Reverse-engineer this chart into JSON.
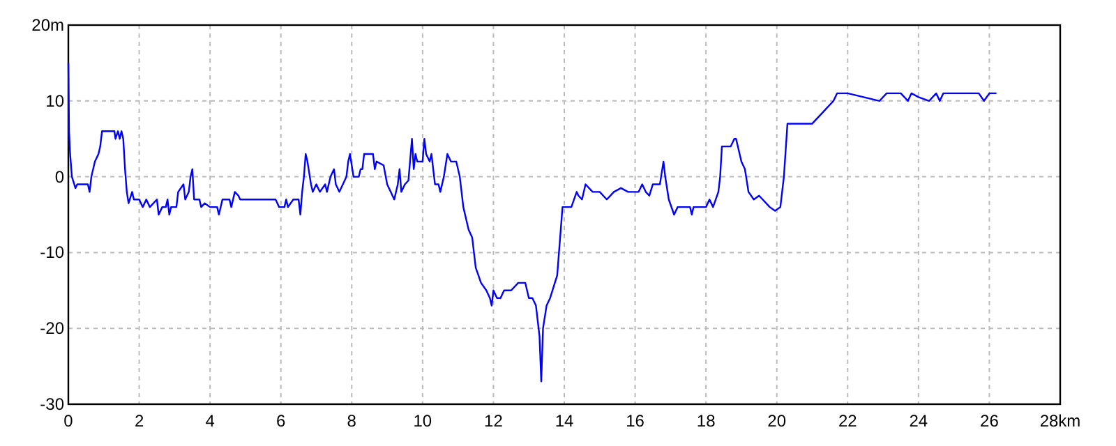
{
  "chart_data": {
    "type": "line",
    "xlim": [
      0,
      28
    ],
    "ylim": [
      -30,
      20
    ],
    "xticks": [
      0,
      2,
      4,
      6,
      8,
      10,
      12,
      14,
      16,
      18,
      20,
      22,
      24,
      26,
      {
        "value": 28,
        "label": "28km"
      }
    ],
    "yticks": [
      -30,
      -20,
      -10,
      0,
      10,
      {
        "value": 20,
        "label": "20m"
      }
    ],
    "grid": true,
    "line_style": "solid",
    "marker": "none",
    "series": [
      {
        "color": "#0000ff",
        "x": [
          0,
          0.02,
          0.05,
          0.1,
          0.2,
          0.25,
          0.4,
          0.55,
          0.6,
          0.65,
          0.75,
          0.85,
          0.9,
          0.95,
          1.3,
          1.33,
          1.4,
          1.45,
          1.5,
          1.55,
          1.6,
          1.65,
          1.7,
          1.8,
          1.85,
          2.0,
          2.1,
          2.2,
          2.3,
          2.5,
          2.55,
          2.65,
          2.75,
          2.8,
          2.85,
          2.9,
          3.05,
          3.1,
          3.25,
          3.3,
          3.4,
          3.45,
          3.5,
          3.55,
          3.7,
          3.75,
          3.85,
          4.0,
          4.2,
          4.25,
          4.35,
          4.55,
          4.6,
          4.7,
          4.8,
          4.85,
          5.0,
          5.85,
          5.95,
          6.1,
          6.15,
          6.2,
          6.35,
          6.5,
          6.55,
          6.6,
          6.65,
          6.7,
          6.75,
          6.85,
          6.9,
          7.0,
          7.1,
          7.25,
          7.3,
          7.4,
          7.5,
          7.55,
          7.65,
          7.75,
          7.85,
          7.9,
          7.95,
          8.05,
          8.2,
          8.25,
          8.3,
          8.35,
          8.6,
          8.65,
          8.7,
          8.9,
          9.0,
          9.1,
          9.2,
          9.3,
          9.35,
          9.4,
          9.5,
          9.6,
          9.7,
          9.75,
          9.8,
          9.85,
          10.0,
          10.05,
          10.1,
          10.2,
          10.25,
          10.3,
          10.35,
          10.45,
          10.5,
          10.6,
          10.7,
          10.8,
          10.95,
          11.05,
          11.15,
          11.3,
          11.4,
          11.5,
          11.65,
          11.8,
          11.9,
          11.95,
          12.0,
          12.1,
          12.2,
          12.3,
          12.5,
          12.7,
          12.9,
          13.0,
          13.1,
          13.2,
          13.3,
          13.35,
          13.4,
          13.5,
          13.6,
          13.8,
          13.85,
          13.95,
          14.2,
          14.35,
          14.4,
          14.5,
          14.6,
          14.8,
          15.0,
          15.2,
          15.4,
          15.6,
          15.8,
          16.1,
          16.2,
          16.3,
          16.4,
          16.5,
          16.7,
          16.8,
          16.85,
          16.95,
          17.1,
          17.2,
          17.3,
          17.55,
          17.6,
          17.65,
          18.0,
          18.1,
          18.2,
          18.35,
          18.4,
          18.45,
          18.7,
          18.8,
          18.85,
          19.0,
          19.1,
          19.2,
          19.35,
          19.5,
          19.6,
          19.8,
          19.95,
          20.1,
          20.2,
          20.3,
          20.5,
          21.0,
          21.3,
          21.6,
          21.7,
          22.0,
          22.9,
          23.1,
          23.5,
          23.7,
          23.8,
          24.0,
          24.3,
          24.5,
          24.6,
          24.7,
          25.7,
          25.85,
          26.0,
          26.2
        ],
        "values": [
          15,
          6,
          3,
          0,
          -1.5,
          -1,
          -1,
          -1,
          -2,
          0,
          2,
          3,
          4,
          6,
          6,
          5,
          6,
          5,
          6,
          5,
          1,
          -2,
          -3.5,
          -2,
          -3,
          -3,
          -4,
          -3,
          -4,
          -3,
          -5,
          -4,
          -4,
          -3,
          -5,
          -4,
          -4,
          -2,
          -1,
          -3,
          -2,
          0,
          1,
          -3,
          -3,
          -4,
          -3.5,
          -4,
          -4,
          -5,
          -3,
          -3,
          -4,
          -2,
          -2.5,
          -3,
          -3,
          -3,
          -4,
          -4,
          -3,
          -4,
          -3,
          -3,
          -5,
          -2,
          0,
          3,
          2,
          -1,
          -2,
          -1,
          -2,
          -1,
          -2,
          0,
          1,
          -1,
          -2,
          -1,
          0,
          2,
          3,
          0,
          0,
          1,
          1,
          3,
          3,
          1,
          2,
          1.5,
          -1,
          -2,
          -3,
          -1,
          1,
          -2,
          -1,
          -0.5,
          5,
          1,
          3,
          2,
          2,
          5,
          3,
          2,
          3,
          1,
          -1,
          -1,
          -2,
          0,
          3,
          2,
          2,
          0,
          -4,
          -7,
          -8,
          -12,
          -14,
          -15,
          -16,
          -17,
          -15,
          -16,
          -16,
          -15,
          -15,
          -14,
          -14,
          -16,
          -16,
          -17,
          -21,
          -27,
          -20,
          -17,
          -16,
          -13,
          -10,
          -4,
          -4,
          -2,
          -2.5,
          -3,
          -1,
          -2,
          -2,
          -3,
          -2,
          -1.5,
          -2,
          -2,
          -1,
          -2,
          -2.5,
          -1,
          -1,
          2,
          0,
          -3,
          -5,
          -4,
          -4,
          -4,
          -5,
          -4,
          -4,
          -3,
          -4,
          -2,
          0,
          4,
          4,
          5,
          5,
          2,
          1,
          -2,
          -3,
          -2.5,
          -3,
          -4,
          -4.5,
          -4,
          0,
          7,
          7,
          7,
          8.5,
          10,
          11,
          11,
          10,
          11,
          11,
          10,
          11,
          10.5,
          10,
          11,
          10,
          11,
          11,
          10,
          11,
          11
        ]
      }
    ]
  }
}
